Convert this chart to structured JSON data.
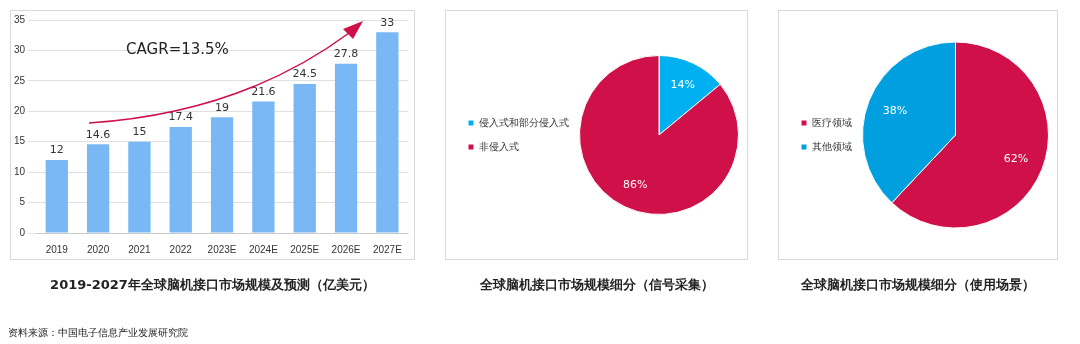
{
  "chart_data": [
    {
      "type": "bar",
      "title": "2019-2027年全球脑机接口市场规模及预测（亿美元）",
      "categories": [
        "2019",
        "2020",
        "2021",
        "2022",
        "2023E",
        "2024E",
        "2025E",
        "2026E",
        "2027E"
      ],
      "values": [
        12,
        14.6,
        15,
        17.4,
        19,
        21.6,
        24.5,
        27.8,
        33
      ],
      "color": "#7ab8f5",
      "ylim": [
        0,
        35
      ],
      "yticks": [
        0,
        5,
        10,
        15,
        20,
        25,
        30,
        35
      ],
      "grid": "y",
      "data_labels": true,
      "legend": false,
      "annotations": [
        "CAGR=13.5%",
        "资料来源：中国电子信息产业发展研究院"
      ]
    },
    {
      "type": "pie",
      "title": "全球脑机接口市场规模细分（信号采集）",
      "categories": [
        "侵入式和部分侵入式",
        "非侵入式"
      ],
      "values": [
        14,
        86
      ],
      "colors": [
        "#00b0f0",
        "#d01048"
      ],
      "value_labels": [
        "14%",
        "86%"
      ],
      "legend": "left"
    },
    {
      "type": "pie",
      "title": "全球脑机接口市场规模细分（使用场景）",
      "categories": [
        "医疗领域",
        "其他领域"
      ],
      "values": [
        62,
        38
      ],
      "colors": [
        "#d01048",
        "#00a0e0"
      ],
      "value_labels": [
        "62%",
        "38%"
      ],
      "legend": "left"
    }
  ]
}
